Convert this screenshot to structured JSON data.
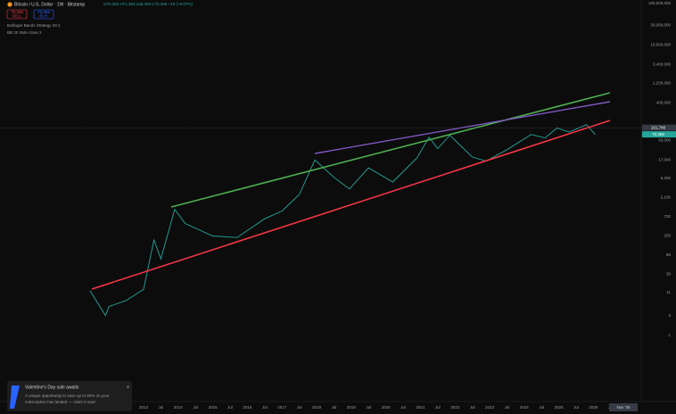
{
  "header": {
    "symbol": "Bitcoin / U.S. Dollar · 1W · Bitstamp",
    "ohlc": "O70,353 H71,383 L65,269 C70,359 +46 (+0.07%)",
    "sell_price": "70,359",
    "sell_label": "SELL",
    "buy_price": "70,359",
    "buy_label": "BUY",
    "indicator_1": "Bollinger Bands Strategy 20 2",
    "indicator_2": "BB 20 SMA close 2"
  },
  "price_axis": {
    "log": true,
    "ticks": [
      {
        "value": 100000000,
        "label": "100,000,000"
      },
      {
        "value": 30000000,
        "label": "30,000,000"
      },
      {
        "value": 10000000,
        "label": "10,000,000"
      },
      {
        "value": 3400000,
        "label": "3,400,000"
      },
      {
        "value": 1200000,
        "label": "1,200,000"
      },
      {
        "value": 400000,
        "label": "400,000"
      },
      {
        "value": 50000,
        "label": "50,000"
      },
      {
        "value": 17000,
        "label": "17,000"
      },
      {
        "value": 6200,
        "label": "6,200"
      },
      {
        "value": 2100,
        "label": "2,100"
      },
      730,
      250,
      86,
      30,
      11,
      3,
      1
    ],
    "crosshair": {
      "value": 101740,
      "label": "101,740"
    },
    "current": {
      "value": 70359,
      "label": "70,359"
    }
  },
  "time_axis": {
    "ticks": [
      2013,
      {
        "value": 2013.5,
        "label": "Jul"
      },
      2014,
      {
        "value": 2014.5,
        "label": "Jul"
      },
      2015,
      {
        "value": 2015.5,
        "label": "Jul"
      },
      2016,
      {
        "value": 2016.5,
        "label": "Jul"
      },
      2017,
      {
        "value": 2017.5,
        "label": "Jul"
      },
      2018,
      {
        "value": 2018.5,
        "label": "Jul"
      },
      2019,
      {
        "value": 2019.5,
        "label": "Jul"
      },
      2020,
      {
        "value": 2020.5,
        "label": "Jul"
      },
      2021,
      {
        "value": 2021.5,
        "label": "Jul"
      },
      2022,
      {
        "value": 2022.5,
        "label": "Jul"
      },
      2023,
      {
        "value": 2023.5,
        "label": "Jul"
      },
      2024,
      {
        "value": 2024.5,
        "label": "Jul"
      },
      2025,
      {
        "value": 2025.5,
        "label": "Jul"
      },
      2026,
      {
        "value": 2026.5,
        "label": "Jul"
      }
    ],
    "cursor_label": "Nov '26"
  },
  "price_series": {
    "color": "#26a69a",
    "x": [
      2011.45,
      2011.9,
      2012.0,
      2012.5,
      2013.0,
      2013.3,
      2013.5,
      2013.9,
      2014.2,
      2015.0,
      2015.7,
      2016.5,
      2017.0,
      2017.5,
      2017.95,
      2018.5,
      2018.95,
      2019.5,
      2020.2,
      2020.9,
      2021.25,
      2021.5,
      2021.85,
      2022.5,
      2022.9,
      2023.5,
      2024.2,
      2024.6,
      2024.95,
      2025.3,
      2025.8,
      2026.05
    ],
    "values": [
      12,
      3,
      5,
      7,
      13,
      200,
      70,
      1100,
      500,
      250,
      230,
      650,
      1000,
      2500,
      17000,
      6500,
      3400,
      11000,
      5000,
      19000,
      60000,
      32000,
      67000,
      20000,
      16000,
      30000,
      70000,
      58000,
      100000,
      80000,
      120000,
      70359
    ]
  },
  "notification": {
    "title": "Valentine's Day sale awaits",
    "body_1": "A unique opportunity to save up to 80% on your",
    "body_2": "subscription has landed — claim it now!",
    "close": "×"
  }
}
